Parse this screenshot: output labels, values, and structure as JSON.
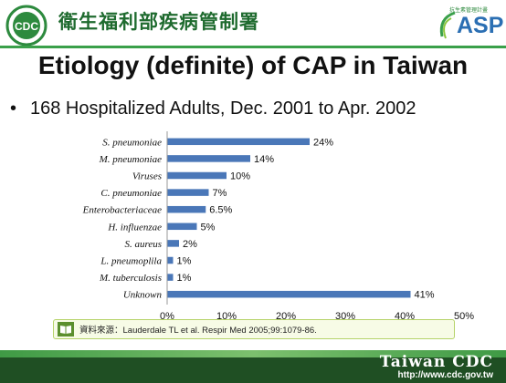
{
  "header": {
    "org_name": "衛生福利部疾病管制署",
    "asp_small": "抗生素管理計畫",
    "asp_logo": "ASP"
  },
  "slide": {
    "title": "Etiology (definite) of CAP in Taiwan",
    "bullet": "168 Hospitalized Adults, Dec. 2001 to Apr. 2002"
  },
  "chart_data": {
    "type": "bar",
    "orientation": "horizontal",
    "categories": [
      "S. pneumoniae",
      "M. pneumoniae",
      "Viruses",
      "C. pneumoniae",
      "Enterobacteriaceae",
      "H. influenzae",
      "S. aureus",
      "L. pneumoplila",
      "M. tuberculosis",
      "Unknown"
    ],
    "values": [
      24,
      14,
      10,
      7,
      6.5,
      5,
      2,
      1,
      1,
      41
    ],
    "value_labels": [
      "24%",
      "14%",
      "10%",
      "7%",
      "6.5%",
      "5%",
      "2%",
      "1%",
      "1%",
      "41%"
    ],
    "x_ticks": [
      "0%",
      "10%",
      "20%",
      "30%",
      "40%",
      "50%"
    ],
    "xlim": [
      0,
      50
    ],
    "bar_color": "#4a77b8",
    "grid": false
  },
  "source": {
    "text": "資料來源：Lauderdale TL et al. Respir Med 2005;99:1079-86."
  },
  "footer": {
    "name": "Taiwan CDC",
    "url": "http://www.cdc.gov.tw"
  }
}
